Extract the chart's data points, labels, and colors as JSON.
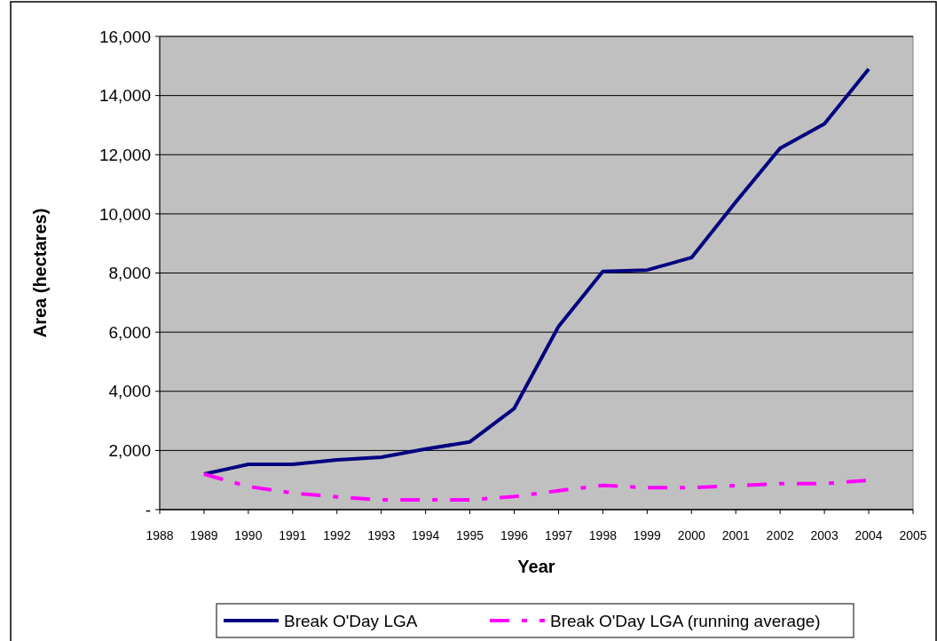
{
  "chart_data": {
    "type": "line",
    "xlabel": "Year",
    "ylabel": "Area (hectares)",
    "x": [
      1989,
      1990,
      1991,
      1992,
      1993,
      1994,
      1995,
      1996,
      1997,
      1998,
      1999,
      2000,
      2001,
      2002,
      2003,
      2004
    ],
    "series": [
      {
        "name": "Break O'Day LGA",
        "color": "#000080",
        "line_style": "solid",
        "values": [
          1200,
          1530,
          1530,
          1680,
          1770,
          2050,
          2290,
          3420,
          6190,
          8050,
          8100,
          8520,
          10400,
          12220,
          13040,
          14900
        ]
      },
      {
        "name": "Break O'Day LGA (running average)",
        "color": "#ff00ff",
        "line_style": "dashed",
        "values": [
          1200,
          780,
          560,
          430,
          330,
          330,
          330,
          440,
          640,
          820,
          740,
          740,
          810,
          880,
          880,
          990
        ]
      }
    ],
    "xlim": [
      1988,
      2005
    ],
    "xticks": [
      1988,
      1989,
      1990,
      1991,
      1992,
      1993,
      1994,
      1995,
      1996,
      1997,
      1998,
      1999,
      2000,
      2001,
      2002,
      2003,
      2004,
      2005
    ],
    "ylim": [
      0,
      16000
    ],
    "yticks": [
      {
        "value": 0,
        "label": "-"
      },
      {
        "value": 2000,
        "label": "2,000"
      },
      {
        "value": 4000,
        "label": "4,000"
      },
      {
        "value": 6000,
        "label": "6,000"
      },
      {
        "value": 8000,
        "label": "8,000"
      },
      {
        "value": 10000,
        "label": "10,000"
      },
      {
        "value": 12000,
        "label": "12,000"
      },
      {
        "value": 14000,
        "label": "14,000"
      },
      {
        "value": 16000,
        "label": "16,000"
      }
    ],
    "grid": "y",
    "legend": "bottom"
  }
}
